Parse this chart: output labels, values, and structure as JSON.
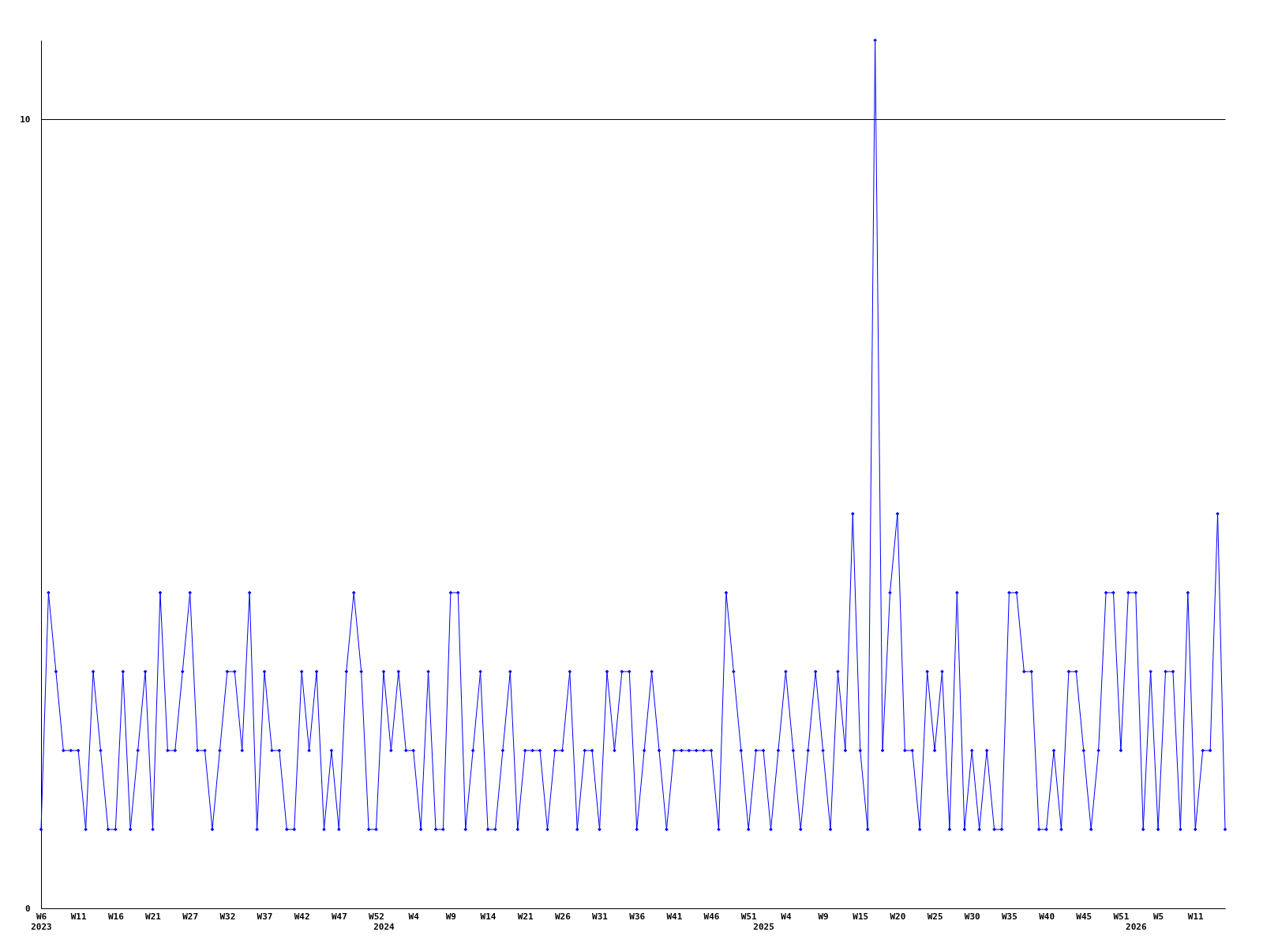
{
  "chart_data": {
    "type": "line",
    "categories": [
      "W6\n2023",
      null,
      null,
      null,
      null,
      "W11",
      null,
      null,
      null,
      null,
      "W16",
      null,
      null,
      null,
      null,
      "W21",
      null,
      null,
      null,
      null,
      "W27",
      null,
      null,
      null,
      null,
      "W32",
      null,
      null,
      null,
      null,
      "W37",
      null,
      null,
      null,
      null,
      "W42",
      null,
      null,
      null,
      null,
      "W47",
      null,
      null,
      null,
      null,
      "W52",
      "2024",
      null,
      null,
      null,
      "W4",
      null,
      null,
      null,
      null,
      "W9",
      null,
      null,
      null,
      null,
      "W14",
      null,
      null,
      null,
      null,
      "W21",
      null,
      null,
      null,
      null,
      "W26",
      null,
      null,
      null,
      null,
      "W31",
      null,
      null,
      null,
      null,
      "W36",
      null,
      null,
      null,
      null,
      "W41",
      null,
      null,
      null,
      null,
      "W46",
      null,
      null,
      null,
      null,
      "W51",
      null,
      "2025",
      null,
      null,
      "W4",
      null,
      null,
      null,
      null,
      "W9",
      null,
      null,
      null,
      null,
      "W15",
      null,
      null,
      null,
      null,
      "W20",
      null,
      null,
      null,
      null,
      "W25",
      null,
      null,
      null,
      null,
      "W30",
      null,
      null,
      null,
      null,
      "W35",
      null,
      null,
      null,
      null,
      "W40",
      null,
      null,
      null,
      null,
      "W45",
      null,
      null,
      null,
      null,
      "W51",
      null,
      "2026",
      null,
      null,
      "W5",
      null,
      null,
      null,
      null,
      "W11",
      null,
      null,
      null,
      null
    ],
    "series": [
      {
        "color": "#0000ff",
        "values": [
          1,
          4,
          3,
          2,
          2,
          2,
          1,
          3,
          2,
          1,
          1,
          3,
          1,
          2,
          3,
          1,
          4,
          2,
          2,
          3,
          4,
          2,
          2,
          1,
          2,
          3,
          3,
          2,
          4,
          1,
          3,
          2,
          2,
          1,
          1,
          3,
          2,
          3,
          1,
          2,
          1,
          3,
          4,
          3,
          1,
          1,
          3,
          2,
          3,
          2,
          2,
          1,
          3,
          1,
          1,
          4,
          4,
          1,
          2,
          3,
          1,
          1,
          2,
          3,
          1,
          2,
          2,
          2,
          1,
          2,
          2,
          3,
          1,
          2,
          2,
          1,
          3,
          2,
          3,
          3,
          1,
          2,
          3,
          2,
          1,
          2,
          2,
          2,
          2,
          2,
          2,
          1,
          4,
          3,
          2,
          1,
          2,
          2,
          1,
          2,
          3,
          2,
          1,
          2,
          3,
          2,
          1,
          3,
          2,
          5,
          2,
          1,
          11,
          2,
          4,
          5,
          2,
          2,
          1,
          3,
          2,
          3,
          1,
          4,
          1,
          2,
          1,
          2,
          1,
          1,
          4,
          4,
          3,
          3,
          1,
          1,
          2,
          1,
          3,
          3,
          2,
          1,
          2,
          4,
          4,
          2,
          4,
          4,
          1,
          3,
          1,
          3,
          3,
          1,
          4,
          1,
          2,
          2,
          5,
          1
        ]
      }
    ],
    "ylim": [
      0,
      11
    ],
    "yticks": [
      0,
      10
    ],
    "grid": "y",
    "marker": "diamond",
    "line_style": "solid"
  }
}
